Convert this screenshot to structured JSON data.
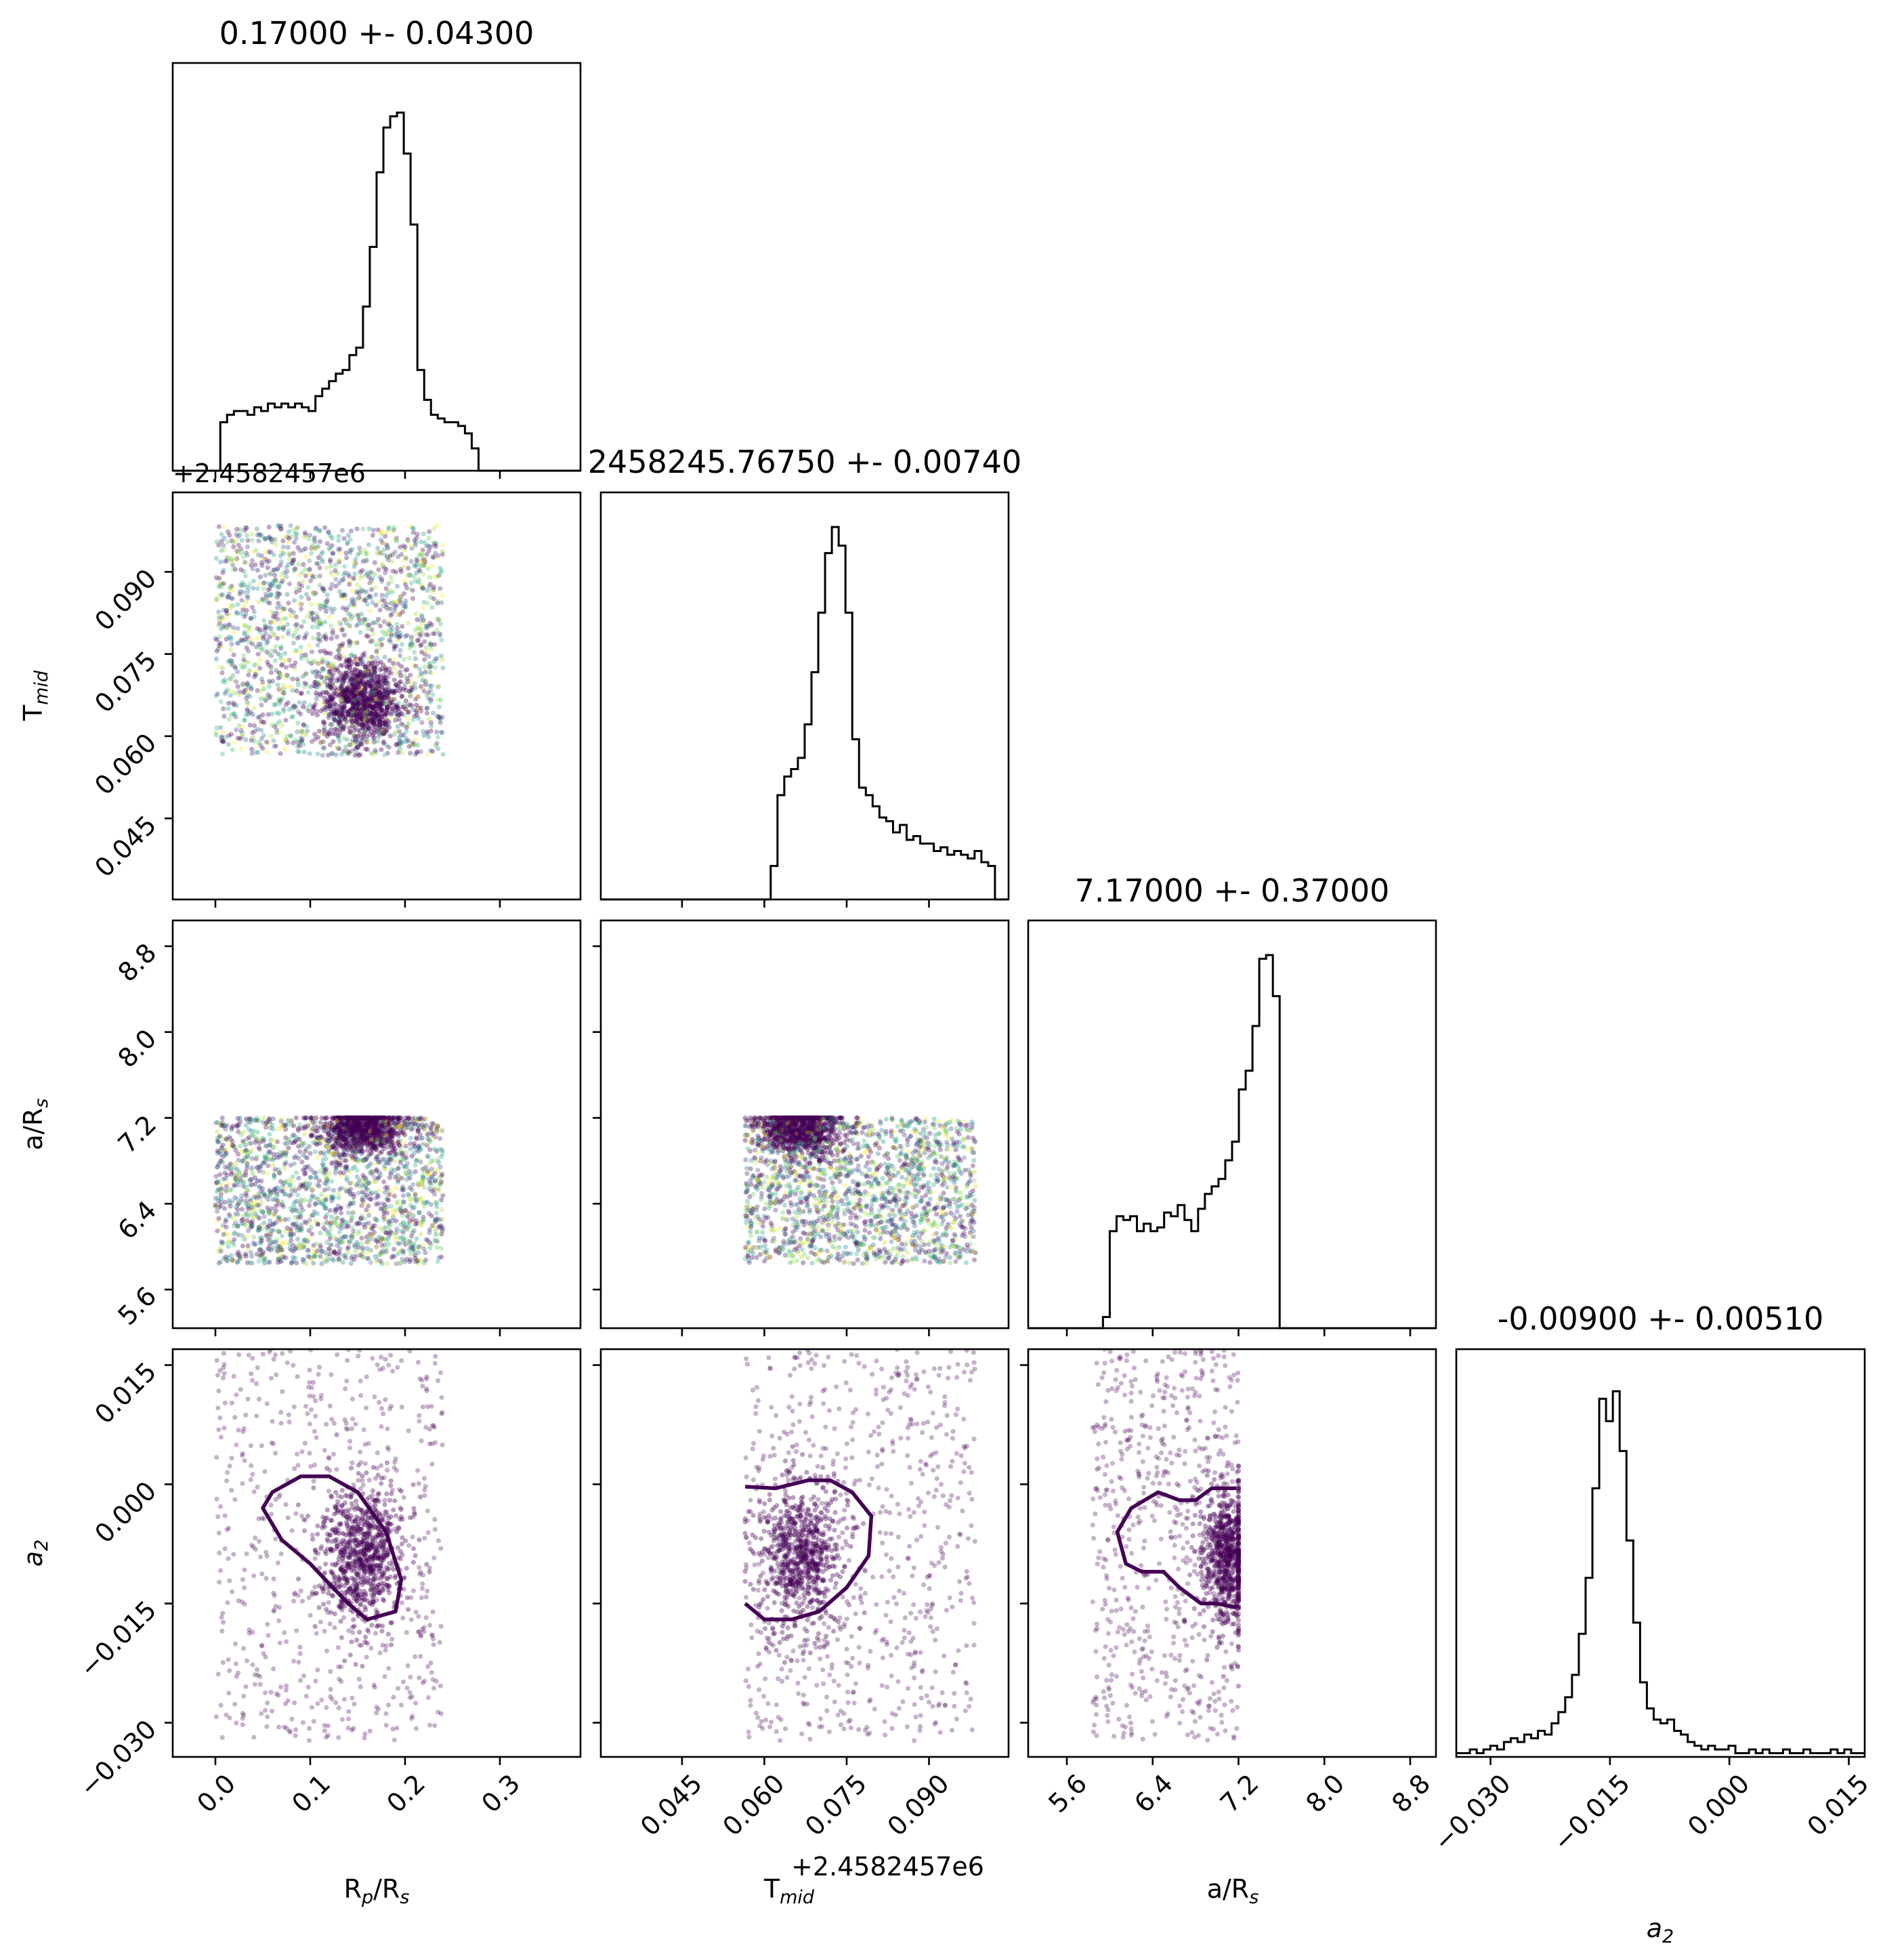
{
  "chart_data": {
    "type": "corner",
    "parameters": [
      "Rp/Rs",
      "Tmid",
      "a/Rs",
      "a2"
    ],
    "axis_labels": {
      "Rp/Rs": {
        "main": "R",
        "sub": "p",
        "rest": "/R",
        "sub2": "s"
      },
      "Tmid": {
        "main": "T",
        "sub": "mid",
        "rest": "",
        "sub2": ""
      },
      "a/Rs": {
        "main": "a/R",
        "sub": "s",
        "rest": "",
        "sub2": ""
      },
      "a2": {
        "main": "a",
        "sub": "2",
        "rest": "",
        "sub2": "",
        "italic": true
      }
    },
    "tmid_offset": "+2.4582457e6",
    "titles": [
      "0.17000 +- 0.04300",
      "2458245.76750 +- 0.00740",
      "7.17000 +- 0.37000",
      "-0.00900 +- 0.00510"
    ],
    "ranges": {
      "Rp/Rs": [
        -0.045,
        0.385
      ],
      "Tmid": [
        0.0302,
        0.1045
      ],
      "a/Rs": [
        5.24,
        9.04
      ],
      "a2": [
        -0.0343,
        0.017
      ]
    },
    "ticks": {
      "Rp/Rs": [
        "0.0",
        "0.1",
        "0.2",
        "0.3"
      ],
      "Tmid": [
        "0.045",
        "0.060",
        "0.075",
        "0.090"
      ],
      "a/Rs": [
        "5.6",
        "6.4",
        "7.2",
        "8.0",
        "8.8"
      ],
      "a2": [
        "−0.030",
        "−0.015",
        "0.000",
        "0.015"
      ]
    },
    "tick_values": {
      "Rp/Rs": [
        0.0,
        0.1,
        0.2,
        0.3
      ],
      "Tmid": [
        0.045,
        0.06,
        0.075,
        0.09
      ],
      "a/Rs": [
        5.6,
        6.4,
        7.2,
        8.0,
        8.8
      ],
      "a2": [
        -0.03,
        -0.015,
        0.0,
        0.015
      ]
    },
    "histograms": {
      "Rp/Rs": {
        "edges": [
          -0.045,
          0.385
        ],
        "bins": 60,
        "counts": [
          0,
          0,
          0,
          0,
          0,
          0,
          0,
          0.13,
          0.15,
          0.16,
          0.16,
          0.15,
          0.17,
          0.16,
          0.18,
          0.17,
          0.18,
          0.17,
          0.18,
          0.17,
          0.16,
          0.2,
          0.22,
          0.24,
          0.26,
          0.27,
          0.31,
          0.33,
          0.44,
          0.6,
          0.8,
          0.92,
          0.95,
          0.96,
          0.85,
          0.66,
          0.27,
          0.19,
          0.15,
          0.14,
          0.13,
          0.13,
          0.12,
          0.1,
          0.06,
          0,
          0,
          0,
          0,
          0,
          0,
          0,
          0,
          0,
          0,
          0,
          0,
          0,
          0,
          0
        ]
      },
      "Tmid": {
        "edges": [
          0.0302,
          0.1045
        ],
        "bins": 60,
        "counts": [
          0,
          0,
          0,
          0,
          0,
          0,
          0,
          0,
          0,
          0,
          0,
          0,
          0,
          0,
          0,
          0,
          0,
          0,
          0,
          0,
          0,
          0,
          0,
          0,
          0,
          0.09,
          0.28,
          0.33,
          0.35,
          0.38,
          0.47,
          0.61,
          0.77,
          0.93,
          1.0,
          0.95,
          0.77,
          0.43,
          0.3,
          0.28,
          0.25,
          0.22,
          0.21,
          0.18,
          0.2,
          0.16,
          0.17,
          0.15,
          0.15,
          0.13,
          0.14,
          0.12,
          0.13,
          0.12,
          0.11,
          0.13,
          0.1,
          0.09,
          0,
          0
        ]
      },
      "a/Rs": {
        "edges": [
          5.24,
          9.04
        ],
        "bins": 60,
        "counts": [
          0,
          0,
          0,
          0,
          0,
          0,
          0,
          0,
          0,
          0,
          0,
          0.03,
          0.26,
          0.3,
          0.29,
          0.3,
          0.26,
          0.28,
          0.26,
          0.27,
          0.31,
          0.3,
          0.33,
          0.29,
          0.26,
          0.32,
          0.36,
          0.38,
          0.4,
          0.45,
          0.5,
          0.64,
          0.69,
          0.81,
          0.99,
          1.0,
          0.89,
          0.0,
          0,
          0,
          0,
          0,
          0,
          0,
          0,
          0,
          0,
          0,
          0,
          0,
          0,
          0,
          0,
          0,
          0,
          0,
          0,
          0,
          0,
          0
        ]
      },
      "a2": {
        "edges": [
          -0.0343,
          0.017
        ],
        "bins": 60,
        "counts": [
          0.01,
          0.01,
          0.02,
          0.01,
          0.02,
          0.03,
          0.02,
          0.04,
          0.05,
          0.04,
          0.06,
          0.05,
          0.07,
          0.06,
          0.09,
          0.12,
          0.16,
          0.22,
          0.33,
          0.48,
          0.72,
          0.96,
          0.9,
          0.98,
          0.82,
          0.58,
          0.36,
          0.2,
          0.13,
          0.1,
          0.09,
          0.1,
          0.07,
          0.06,
          0.04,
          0.03,
          0.02,
          0.03,
          0.02,
          0.02,
          0.03,
          0.01,
          0.01,
          0.02,
          0.01,
          0.02,
          0.01,
          0.01,
          0.02,
          0.01,
          0.01,
          0.02,
          0.01,
          0.01,
          0.01,
          0.02,
          0.01,
          0.02,
          0.01,
          0.01
        ]
      }
    },
    "scatter_support": {
      "Rp/Rs": [
        0.0,
        0.24
      ],
      "Tmid": [
        0.0565,
        0.0985
      ],
      "a/Rs": [
        5.84,
        7.2
      ],
      "a2": [
        -0.0343,
        0.017
      ]
    },
    "modes": {
      "Rp/Rs": 0.155,
      "Tmid": 0.0665,
      "a/Rs": 7.1,
      "a2": -0.009
    },
    "contours": {
      "Rp/Rs-a2": [
        [
          0.05,
          -0.003
        ],
        [
          0.06,
          -0.001
        ],
        [
          0.09,
          0.001
        ],
        [
          0.12,
          0.001
        ],
        [
          0.15,
          -0.001
        ],
        [
          0.18,
          -0.006
        ],
        [
          0.196,
          -0.012
        ],
        [
          0.19,
          -0.016
        ],
        [
          0.16,
          -0.017
        ],
        [
          0.14,
          -0.015
        ],
        [
          0.1,
          -0.01
        ],
        [
          0.07,
          -0.007
        ],
        [
          0.05,
          -0.003
        ]
      ],
      "Tmid-a2": [
        [
          0.0565,
          -0.0003
        ],
        [
          0.062,
          -0.0005
        ],
        [
          0.068,
          0.0005
        ],
        [
          0.072,
          0.0005
        ],
        [
          0.076,
          -0.001
        ],
        [
          0.0795,
          -0.004
        ],
        [
          0.079,
          -0.009
        ],
        [
          0.075,
          -0.013
        ],
        [
          0.07,
          -0.016
        ],
        [
          0.065,
          -0.017
        ],
        [
          0.06,
          -0.017
        ],
        [
          0.0565,
          -0.015
        ]
      ],
      "a/Rs-a2": [
        [
          7.18,
          -0.0005
        ],
        [
          6.95,
          -0.0005
        ],
        [
          6.8,
          -0.002
        ],
        [
          6.65,
          -0.002
        ],
        [
          6.45,
          -0.001
        ],
        [
          6.2,
          -0.003
        ],
        [
          6.07,
          -0.006
        ],
        [
          6.15,
          -0.01
        ],
        [
          6.3,
          -0.011
        ],
        [
          6.5,
          -0.011
        ],
        [
          6.65,
          -0.013
        ],
        [
          6.85,
          -0.015
        ],
        [
          7.0,
          -0.015
        ],
        [
          7.18,
          -0.0155
        ]
      ]
    }
  }
}
